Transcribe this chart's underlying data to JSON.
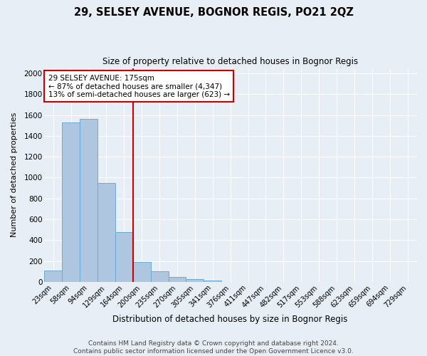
{
  "title": "29, SELSEY AVENUE, BOGNOR REGIS, PO21 2QZ",
  "subtitle": "Size of property relative to detached houses in Bognor Regis",
  "xlabel": "Distribution of detached houses by size in Bognor Regis",
  "ylabel": "Number of detached properties",
  "categories": [
    "23sqm",
    "58sqm",
    "94sqm",
    "129sqm",
    "164sqm",
    "200sqm",
    "235sqm",
    "270sqm",
    "305sqm",
    "341sqm",
    "376sqm",
    "411sqm",
    "447sqm",
    "482sqm",
    "517sqm",
    "553sqm",
    "588sqm",
    "623sqm",
    "659sqm",
    "694sqm",
    "729sqm"
  ],
  "values": [
    110,
    1530,
    1560,
    950,
    480,
    190,
    100,
    48,
    25,
    15,
    0,
    0,
    0,
    0,
    0,
    0,
    0,
    0,
    0,
    0,
    0
  ],
  "bar_color": "#aec6df",
  "bar_edge_color": "#6aaad4",
  "background_color": "#e8eef5",
  "grid_color": "#ffffff",
  "vline_x_index": 4.5,
  "vline_color": "#cc0000",
  "annotation_text": "29 SELSEY AVENUE: 175sqm\n← 87% of detached houses are smaller (4,347)\n13% of semi-detached houses are larger (623) →",
  "annotation_box_color": "#ffffff",
  "annotation_box_edge": "#cc0000",
  "footer_line1": "Contains HM Land Registry data © Crown copyright and database right 2024.",
  "footer_line2": "Contains public sector information licensed under the Open Government Licence v3.0.",
  "ylim": [
    0,
    2050
  ],
  "yticks": [
    0,
    200,
    400,
    600,
    800,
    1000,
    1200,
    1400,
    1600,
    1800,
    2000
  ],
  "title_fontsize": 10.5,
  "subtitle_fontsize": 8.5,
  "xlabel_fontsize": 8.5,
  "ylabel_fontsize": 8,
  "tick_fontsize": 7,
  "footer_fontsize": 6.5,
  "annot_fontsize": 7.5
}
